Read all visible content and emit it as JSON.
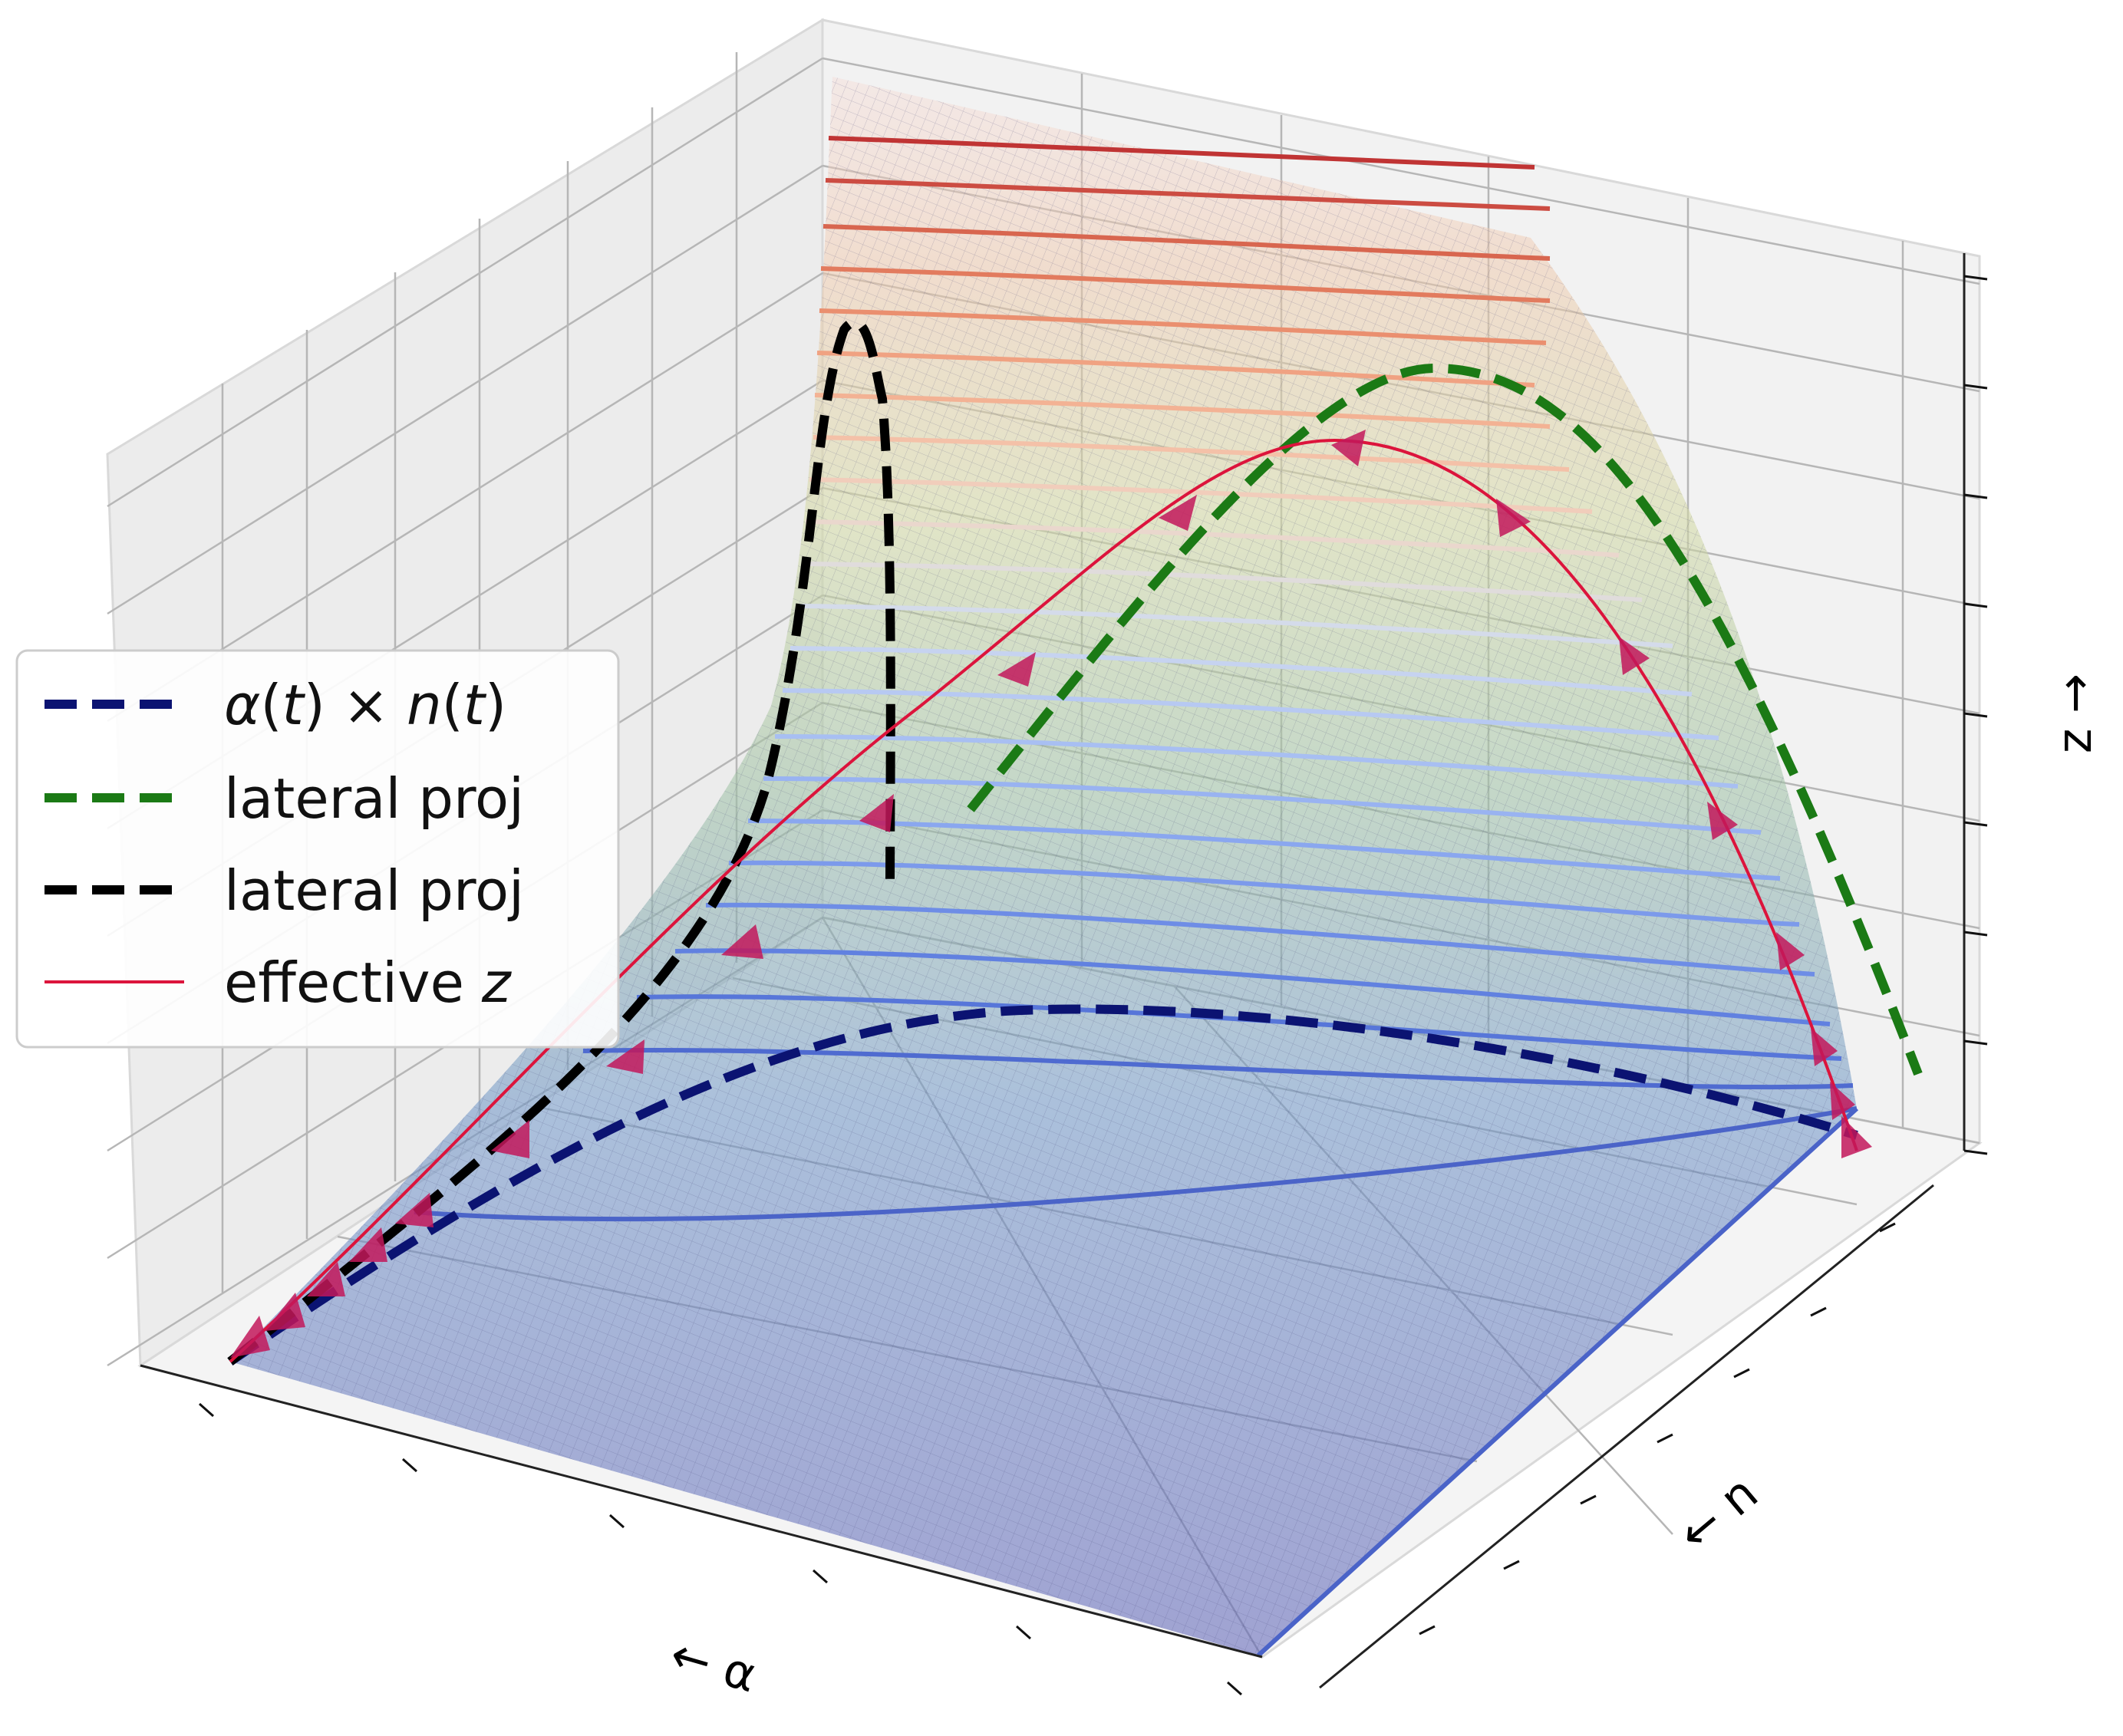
{
  "chart_data": {
    "type": "surface3d",
    "title": "",
    "axes": {
      "x": {
        "label": "← α",
        "range": [
          0,
          1
        ],
        "ticks": 6,
        "tick_labels": []
      },
      "y": {
        "label": "← n",
        "range": [
          0,
          1
        ],
        "ticks": 8,
        "tick_labels": []
      },
      "z": {
        "label": "z →",
        "range": [
          0,
          1
        ],
        "ticks": 9,
        "tick_labels": []
      }
    },
    "grid": true,
    "surface": {
      "description": "z rises steeply toward alpha = 0",
      "colormap": [
        "#5a5fb6",
        "#6f96c7",
        "#9fc2a5",
        "#d3d9a3",
        "#efc7a9",
        "#f6d6cf"
      ],
      "contour_levels": 22
    },
    "series": [
      {
        "name": "α(t) × n(t)",
        "style": "dashed",
        "color": "#0b1372",
        "width": "thick",
        "points": [
          [
            0.0,
            0.0,
            0.0
          ],
          [
            0.3,
            0.35,
            0.0
          ],
          [
            0.45,
            0.75,
            0.0
          ],
          [
            0.55,
            0.95,
            0.0
          ],
          [
            1.0,
            1.0,
            0.0
          ]
        ]
      },
      {
        "name": "lateral proj",
        "style": "dashed",
        "color": "#1b7a15",
        "width": "thick",
        "points": [
          [
            0.45,
            0.35,
            0.36
          ],
          [
            0.55,
            0.5,
            0.71
          ],
          [
            0.68,
            0.7,
            0.73
          ],
          [
            1.0,
            1.0,
            0.07
          ]
        ]
      },
      {
        "name": "lateral proj",
        "style": "dashed",
        "color": "#000000",
        "width": "thick",
        "points": [
          [
            0.0,
            0.0,
            0.0
          ],
          [
            0.05,
            0.05,
            0.33
          ],
          [
            0.0,
            0.5,
            0.82
          ],
          [
            0.0,
            0.45,
            0.73
          ],
          [
            0.0,
            0.6,
            0.3
          ]
        ]
      },
      {
        "name": "effective z",
        "style": "solid",
        "color": "#dc143c",
        "width": "thin",
        "points": [
          [
            0.0,
            0.0,
            0.0
          ],
          [
            0.08,
            0.1,
            0.17
          ],
          [
            0.35,
            0.45,
            0.61
          ],
          [
            0.6,
            0.7,
            0.62
          ],
          [
            1.0,
            1.0,
            0.07
          ]
        ]
      }
    ],
    "legend": {
      "placement": "center-left",
      "entries": [
        {
          "label_parts": [
            "α",
            "(",
            "t",
            ") × ",
            "n",
            "(",
            "t",
            ")"
          ],
          "color": "#0b1372",
          "style": "dashed"
        },
        {
          "label": "lateral proj",
          "color": "#1b7a15",
          "style": "dashed"
        },
        {
          "label": "lateral proj",
          "color": "#000000",
          "style": "dashed"
        },
        {
          "label_parts": [
            "effective ",
            "z"
          ],
          "color": "#dc143c",
          "style": "solid"
        }
      ]
    }
  }
}
